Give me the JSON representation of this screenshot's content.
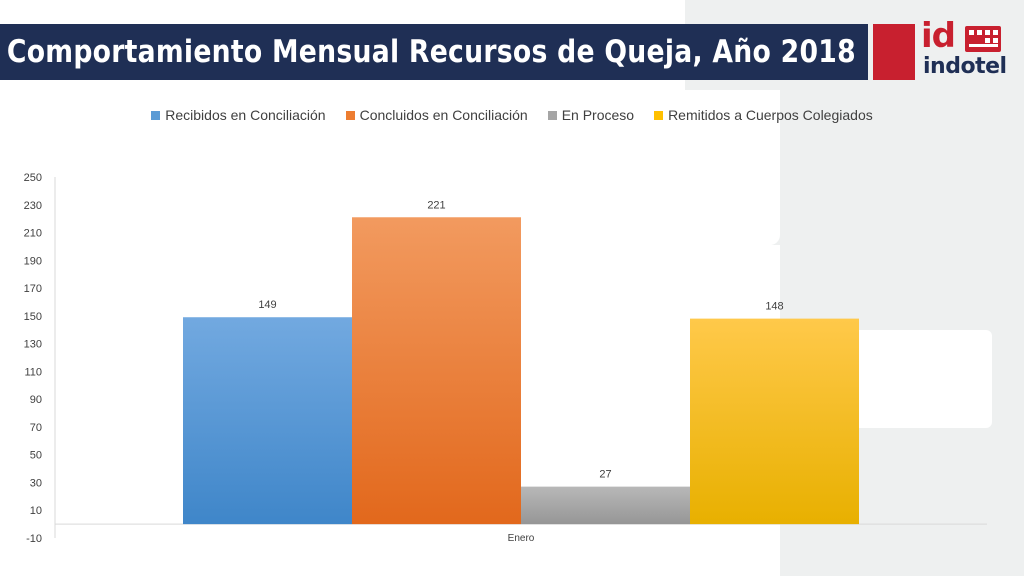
{
  "title": "Comportamiento Mensual Recursos de Queja, Año 2018",
  "logo": {
    "mark": "id",
    "name": "indotel"
  },
  "colors": {
    "title_bar": "#1f2f55",
    "brand_red": "#c8202f",
    "axis": "#d9d9d9"
  },
  "chart_data": {
    "type": "bar",
    "categories": [
      "Enero"
    ],
    "series": [
      {
        "name": "Recibidos en Conciliación",
        "values": [
          149
        ],
        "color": "#5b9bd5"
      },
      {
        "name": "Concluidos en Conciliación",
        "values": [
          221
        ],
        "color": "#ed7d31"
      },
      {
        "name": "En Proceso",
        "values": [
          27
        ],
        "color": "#a5a5a5"
      },
      {
        "name": "Remitidos a Cuerpos Colegiados",
        "values": [
          148
        ],
        "color": "#ffc000"
      }
    ],
    "yticks": [
      "-10",
      "10",
      "30",
      "50",
      "70",
      "90",
      "110",
      "130",
      "150",
      "170",
      "190",
      "210",
      "230",
      "250"
    ],
    "ylim": [
      -10,
      250
    ],
    "legend_position": "top",
    "grid": false
  }
}
